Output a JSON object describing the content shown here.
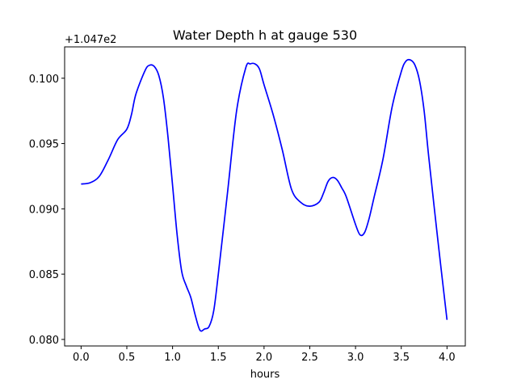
{
  "chart_data": {
    "type": "line",
    "title": "Water Depth h at gauge 530",
    "xlabel": "hours",
    "ylabel": "",
    "y_offset_label": "+1.047e2",
    "xlim": [
      -0.18,
      4.2
    ],
    "ylim": [
      0.0795,
      0.1024
    ],
    "x_ticks": [
      0.0,
      0.5,
      1.0,
      1.5,
      2.0,
      2.5,
      3.0,
      3.5,
      4.0
    ],
    "x_tick_labels": [
      "0.0",
      "0.5",
      "1.0",
      "1.5",
      "2.0",
      "2.5",
      "3.0",
      "3.5",
      "4.0"
    ],
    "y_ticks": [
      0.08,
      0.085,
      0.09,
      0.095,
      0.1
    ],
    "y_tick_labels": [
      "0.080",
      "0.085",
      "0.090",
      "0.095",
      "0.100"
    ],
    "grid": false,
    "series": [
      {
        "color": "#0000ff",
        "x": [
          0.0,
          0.1,
          0.2,
          0.3,
          0.4,
          0.5,
          0.55,
          0.6,
          0.7,
          0.75,
          0.8,
          0.85,
          0.9,
          0.95,
          1.0,
          1.05,
          1.1,
          1.15,
          1.2,
          1.25,
          1.3,
          1.35,
          1.4,
          1.45,
          1.5,
          1.6,
          1.7,
          1.8,
          1.85,
          1.9,
          1.95,
          2.0,
          2.1,
          2.2,
          2.3,
          2.4,
          2.5,
          2.6,
          2.65,
          2.7,
          2.75,
          2.8,
          2.85,
          2.9,
          3.0,
          3.05,
          3.1,
          3.15,
          3.2,
          3.3,
          3.4,
          3.5,
          3.55,
          3.6,
          3.65,
          3.7,
          3.75,
          3.8,
          3.9,
          4.0
        ],
        "y": [
          0.0919,
          0.092,
          0.0925,
          0.0938,
          0.0953,
          0.0961,
          0.0972,
          0.0988,
          0.1006,
          0.101,
          0.1009,
          0.1002,
          0.0985,
          0.0955,
          0.0918,
          0.088,
          0.0852,
          0.0841,
          0.0832,
          0.0818,
          0.0807,
          0.0808,
          0.081,
          0.0822,
          0.085,
          0.0912,
          0.0975,
          0.1008,
          0.1011,
          0.1011,
          0.1007,
          0.0995,
          0.0972,
          0.0945,
          0.0915,
          0.0905,
          0.0902,
          0.0905,
          0.0912,
          0.0921,
          0.0924,
          0.0922,
          0.0916,
          0.0909,
          0.0888,
          0.088,
          0.0882,
          0.0893,
          0.0908,
          0.0938,
          0.0978,
          0.1005,
          0.1013,
          0.1014,
          0.101,
          0.0998,
          0.0975,
          0.094,
          0.0876,
          0.0815
        ]
      }
    ]
  }
}
